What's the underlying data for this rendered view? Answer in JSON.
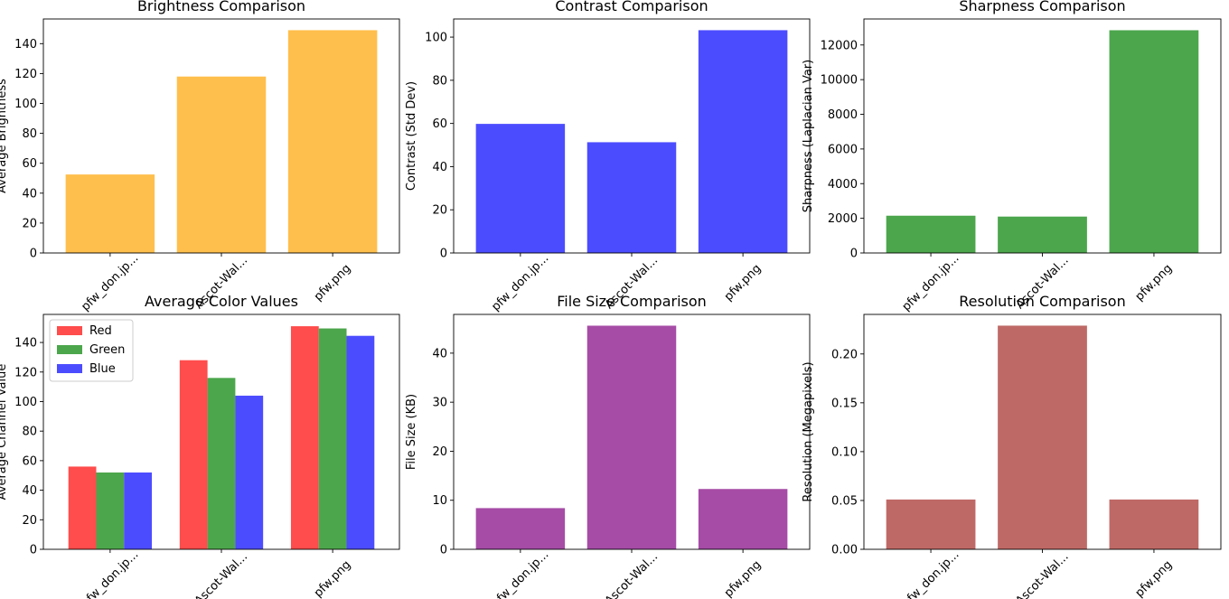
{
  "chart_data": [
    {
      "type": "bar",
      "title": "Brightness Comparison",
      "ylabel": "Average Brightness",
      "categories": [
        "pfw_don.jp...",
        "Ascot-Wal...",
        "pfw.png"
      ],
      "values": [
        52.5,
        118,
        149
      ],
      "ylim": [
        0,
        156.5
      ],
      "yticks": [
        0,
        20,
        40,
        60,
        80,
        100,
        120,
        140
      ],
      "color": "#FFBF4C"
    },
    {
      "type": "bar",
      "title": "Contrast Comparison",
      "ylabel": "Contrast (Std Dev)",
      "categories": [
        "pfw_don.jp...",
        "Ascot-Wal...",
        "pfw.png"
      ],
      "values": [
        59.8,
        51.3,
        103.2
      ],
      "ylim": [
        0,
        108.4
      ],
      "yticks": [
        0,
        20,
        40,
        60,
        80,
        100
      ],
      "color": "#4C4CFF"
    },
    {
      "type": "bar",
      "title": "Sharpness Comparison",
      "ylabel": "Sharpness (Laplacian Var)",
      "categories": [
        "pfw_don.jp...",
        "Ascot-Wal...",
        "pfw.png"
      ],
      "values": [
        2150,
        2100,
        12850
      ],
      "ylim": [
        0,
        13500
      ],
      "yticks": [
        0,
        2000,
        4000,
        6000,
        8000,
        10000,
        12000
      ],
      "color": "#4CA64C"
    },
    {
      "type": "bar",
      "title": "Average Color Values",
      "ylabel": "Average Channel Value",
      "categories": [
        "pfw_don.jp...",
        "Ascot-Wal...",
        "pfw.png"
      ],
      "series": [
        {
          "name": "Red",
          "values": [
            56,
            128,
            151
          ],
          "color": "#FF4C4C"
        },
        {
          "name": "Green",
          "values": [
            52,
            116,
            149.5
          ],
          "color": "#4CA64C"
        },
        {
          "name": "Blue",
          "values": [
            52,
            104,
            144.5
          ],
          "color": "#4C4CFF"
        }
      ],
      "ylim": [
        0,
        159
      ],
      "yticks": [
        0,
        20,
        40,
        60,
        80,
        100,
        120,
        140
      ],
      "legend": "top-left"
    },
    {
      "type": "bar",
      "title": "File Size Comparison",
      "ylabel": "File Size (KB)",
      "categories": [
        "pfw_don.jp...",
        "Ascot-Wal...",
        "pfw.png"
      ],
      "values": [
        8.4,
        45.6,
        12.3
      ],
      "ylim": [
        0,
        47.9
      ],
      "yticks": [
        0,
        10,
        20,
        30,
        40
      ],
      "color": "#A64CA6"
    },
    {
      "type": "bar",
      "title": "Resolution Comparison",
      "ylabel": "Resolution (Megapixels)",
      "categories": [
        "pfw_don.jp...",
        "Ascot-Wal...",
        "pfw.png"
      ],
      "values": [
        0.051,
        0.229,
        0.051
      ],
      "ylim": [
        0,
        0.2405
      ],
      "yticks": [
        0,
        0.05,
        0.1,
        0.15,
        0.2
      ],
      "ytick_labels": [
        "0.00",
        "0.05",
        "0.10",
        "0.15",
        "0.20"
      ],
      "color": "#BF6966"
    }
  ]
}
